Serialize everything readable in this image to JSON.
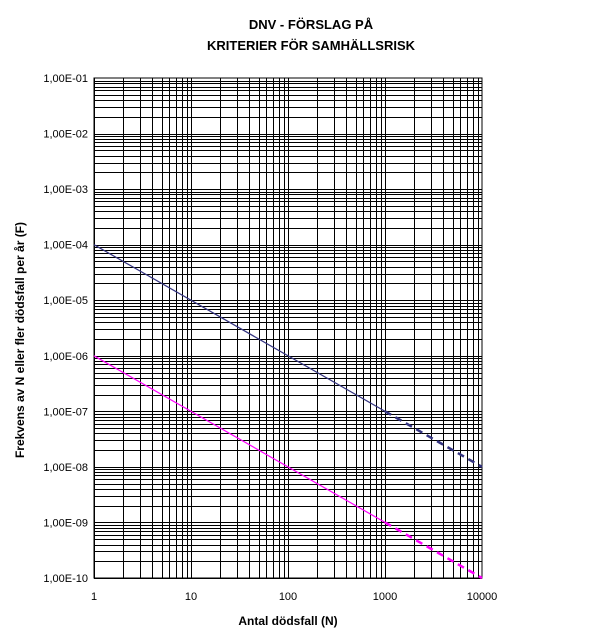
{
  "chart_data": {
    "type": "line",
    "title_lines": [
      "DNV  - FÖRSLAG PÅ",
      "KRITERIER FÖR SAMHÄLLSRISK"
    ],
    "xlabel": "Antal dödsfall (N)",
    "ylabel": "Frekvens av N eller fler dödsfall per år (F)",
    "x_scale": "log",
    "y_scale": "log",
    "xlim": [
      1,
      10000
    ],
    "ylim": [
      1e-10,
      0.1
    ],
    "x_ticks": [
      {
        "value": 1,
        "label": "1"
      },
      {
        "value": 10,
        "label": "10"
      },
      {
        "value": 100,
        "label": "100"
      },
      {
        "value": 1000,
        "label": "1000"
      },
      {
        "value": 10000,
        "label": "10000"
      }
    ],
    "y_ticks": [
      {
        "value": 0.1,
        "label": "1,00E-01"
      },
      {
        "value": 0.01,
        "label": "1,00E-02"
      },
      {
        "value": 0.001,
        "label": "1,00E-03"
      },
      {
        "value": 0.0001,
        "label": "1,00E-04"
      },
      {
        "value": 1e-05,
        "label": "1,00E-05"
      },
      {
        "value": 1e-06,
        "label": "1,00E-06"
      },
      {
        "value": 1e-07,
        "label": "1,00E-07"
      },
      {
        "value": 1e-08,
        "label": "1,00E-08"
      },
      {
        "value": 1e-09,
        "label": "1,00E-09"
      },
      {
        "value": 1e-10,
        "label": "1,00E-10"
      }
    ],
    "grid": true,
    "series": [
      {
        "color": "#333380",
        "segments": [
          {
            "style": "solid",
            "points": [
              [
                1,
                0.0001
              ],
              [
                1000,
                1e-07
              ]
            ]
          },
          {
            "style": "dashed",
            "points": [
              [
                1000,
                1e-07
              ],
              [
                10000,
                1e-08
              ]
            ]
          }
        ]
      },
      {
        "color": "#ff00ff",
        "segments": [
          {
            "style": "solid",
            "points": [
              [
                1,
                1e-06
              ],
              [
                1000,
                1e-09
              ]
            ]
          },
          {
            "style": "dashed",
            "points": [
              [
                1000,
                1e-09
              ],
              [
                10000,
                1e-10
              ]
            ]
          }
        ]
      }
    ]
  }
}
